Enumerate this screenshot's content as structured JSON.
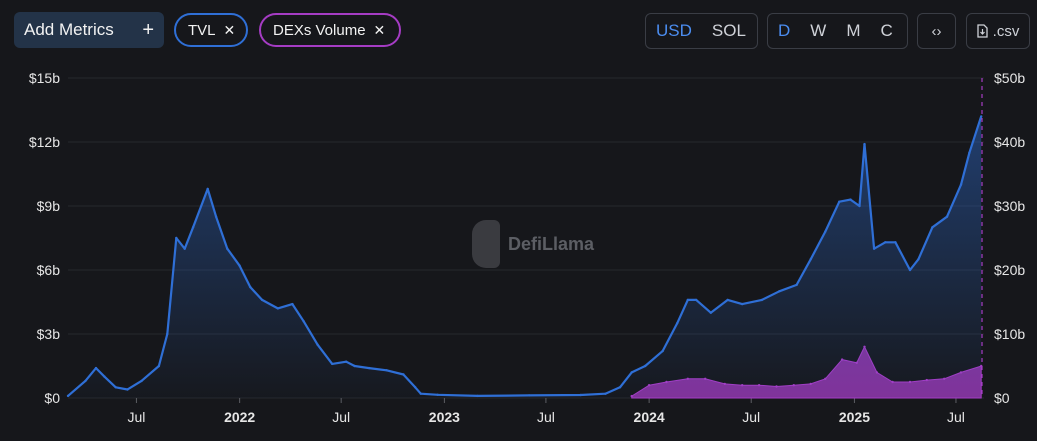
{
  "toolbar": {
    "add_metrics": "Add Metrics",
    "add_icon": "+",
    "chips": [
      {
        "label": "TVL",
        "color": "#2f6fd6"
      },
      {
        "label": "DEXs Volume",
        "color": "#a53cc4"
      }
    ],
    "close_icon": "✕",
    "currencies": [
      "USD",
      "SOL"
    ],
    "currency_selected": "USD",
    "granularity": [
      "D",
      "W",
      "M",
      "C"
    ],
    "granularity_selected": "D",
    "embed_icon": "‹›",
    "csv_label": ".csv"
  },
  "watermark": "DefiLlama",
  "chart_data": {
    "type": "line",
    "x_ticks": [
      "Jul",
      "2022",
      "Jul",
      "2023",
      "Jul",
      "2024",
      "Jul",
      "2025",
      "Jul"
    ],
    "x_ticks_bold": [
      false,
      true,
      false,
      true,
      false,
      true,
      false,
      true,
      false
    ],
    "left_axis": {
      "ticks": [
        "$0",
        "$3b",
        "$6b",
        "$9b",
        "$12b",
        "$15b"
      ],
      "ylim": [
        0,
        15
      ]
    },
    "right_axis": {
      "ticks": [
        "$0",
        "$10b",
        "$20b",
        "$30b",
        "$40b",
        "$50b"
      ],
      "ylim": [
        0,
        50
      ]
    },
    "series": [
      {
        "name": "TVL",
        "color": "#2f6fd6",
        "axis": "left",
        "x": [
          "2021-03-01",
          "2021-04-01",
          "2021-04-20",
          "2021-05-05",
          "2021-05-25",
          "2021-06-15",
          "2021-07-10",
          "2021-08-10",
          "2021-08-25",
          "2021-09-10",
          "2021-09-25",
          "2021-10-10",
          "2021-11-05",
          "2021-11-20",
          "2021-12-10",
          "2022-01-01",
          "2022-01-20",
          "2022-02-10",
          "2022-03-10",
          "2022-04-05",
          "2022-04-25",
          "2022-05-20",
          "2022-06-15",
          "2022-07-10",
          "2022-07-25",
          "2022-08-20",
          "2022-09-20",
          "2022-10-20",
          "2022-11-10",
          "2022-11-20",
          "2022-12-20",
          "2023-03-01",
          "2023-06-01",
          "2023-09-01",
          "2023-10-15",
          "2023-11-10",
          "2023-12-01",
          "2023-12-25",
          "2024-01-25",
          "2024-02-20",
          "2024-03-10",
          "2024-03-25",
          "2024-04-20",
          "2024-05-20",
          "2024-06-15",
          "2024-07-20",
          "2024-08-20",
          "2024-09-20",
          "2024-10-15",
          "2024-11-10",
          "2024-12-05",
          "2024-12-25",
          "2025-01-10",
          "2025-01-19",
          "2025-02-05",
          "2025-02-25",
          "2025-03-15",
          "2025-04-10",
          "2025-04-25",
          "2025-05-20",
          "2025-06-15",
          "2025-07-10",
          "2025-07-25",
          "2025-08-15"
        ],
        "values": [
          0.1,
          0.8,
          1.4,
          1.0,
          0.5,
          0.4,
          0.8,
          1.5,
          3.0,
          7.5,
          7.0,
          8.0,
          9.8,
          8.5,
          7.0,
          6.2,
          5.2,
          4.6,
          4.2,
          4.4,
          3.6,
          2.5,
          1.6,
          1.7,
          1.5,
          1.4,
          1.3,
          1.1,
          0.5,
          0.2,
          0.15,
          0.1,
          0.12,
          0.14,
          0.2,
          0.5,
          1.2,
          1.5,
          2.2,
          3.5,
          4.6,
          4.6,
          4.0,
          4.6,
          4.4,
          4.6,
          5.0,
          5.3,
          6.5,
          7.8,
          9.2,
          9.3,
          9.0,
          11.9,
          7.0,
          7.3,
          7.3,
          6.0,
          6.5,
          8.0,
          8.5,
          10.0,
          11.5,
          13.2
        ]
      },
      {
        "name": "DEXs Volume",
        "color": "#a53cc4",
        "axis": "right",
        "x": [
          "2023-12-01",
          "2024-01-01",
          "2024-02-01",
          "2024-03-10",
          "2024-04-10",
          "2024-05-15",
          "2024-06-15",
          "2024-07-15",
          "2024-08-15",
          "2024-09-15",
          "2024-10-15",
          "2024-11-10",
          "2024-12-10",
          "2025-01-05",
          "2025-01-19",
          "2025-02-10",
          "2025-03-10",
          "2025-04-10",
          "2025-05-10",
          "2025-06-10",
          "2025-07-10",
          "2025-08-15"
        ],
        "values": [
          0.3,
          2.0,
          2.5,
          3.0,
          3.0,
          2.2,
          2.0,
          2.0,
          1.8,
          2.0,
          2.2,
          3.0,
          6.0,
          5.5,
          8.0,
          4.0,
          2.5,
          2.5,
          2.8,
          3.0,
          4.0,
          5.0
        ]
      }
    ]
  }
}
